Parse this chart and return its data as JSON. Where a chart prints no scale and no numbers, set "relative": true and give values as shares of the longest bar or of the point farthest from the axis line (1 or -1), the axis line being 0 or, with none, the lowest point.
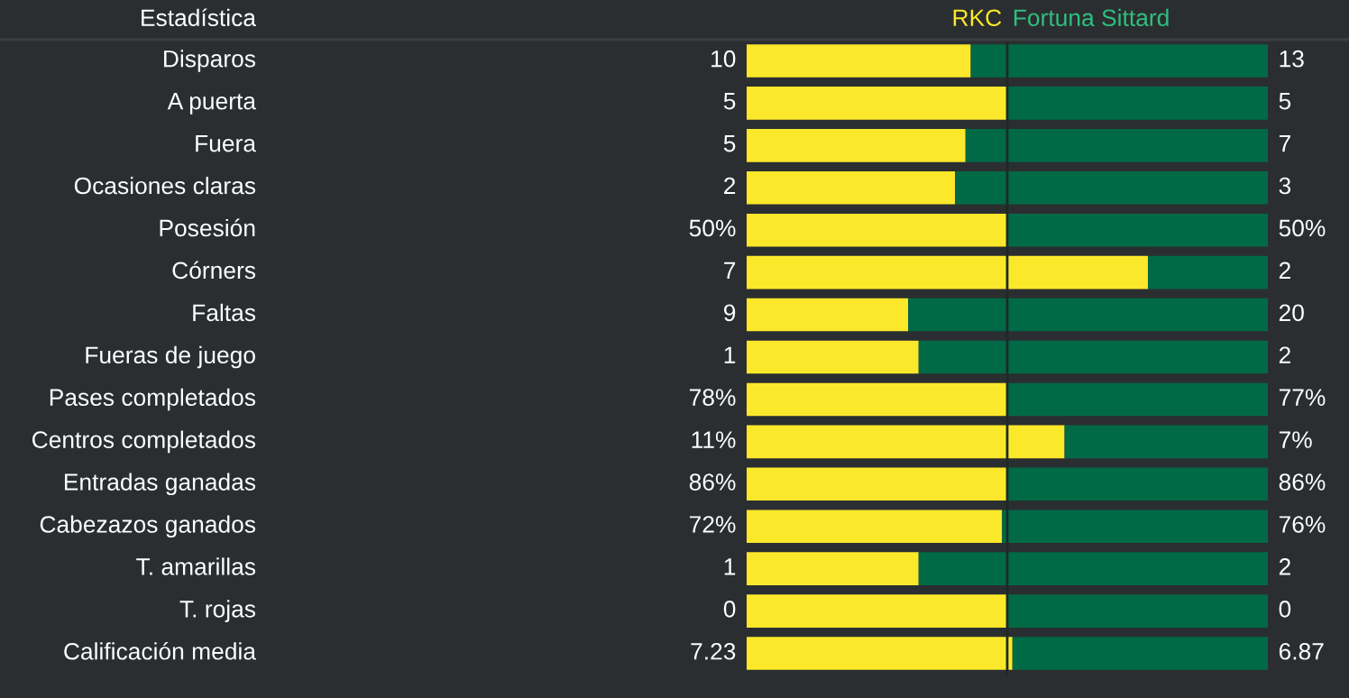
{
  "chart_data": {
    "type": "bar",
    "orientation": "horizontal",
    "stacked": true,
    "relative": true,
    "ylabel": "Estadística",
    "categories": [
      "Disparos",
      "A puerta",
      "Fuera",
      "Ocasiones claras",
      "Posesión",
      "Córners",
      "Faltas",
      "Fueras de juego",
      "Pases completados",
      "Centros completados",
      "Entradas ganadas",
      "Cabezazos ganados",
      "T. amarillas",
      "T. rojas",
      "Calificación media"
    ],
    "series": [
      {
        "name": "RKC",
        "color": "#fce82a",
        "values": [
          0.43,
          0.5,
          0.42,
          0.4,
          0.5,
          0.77,
          0.31,
          0.33,
          0.5,
          0.61,
          0.5,
          0.49,
          0.33,
          0.5,
          0.51
        ]
      },
      {
        "name": "Fortuna Sittard",
        "color": "#006a46",
        "values": [
          0.57,
          0.5,
          0.58,
          0.6,
          0.5,
          0.23,
          0.69,
          0.67,
          0.5,
          0.39,
          0.5,
          0.51,
          0.67,
          0.5,
          0.49
        ]
      }
    ],
    "annotations": [
      "10",
      "13",
      "5",
      "5",
      "5",
      "7",
      "2",
      "3",
      "50%",
      "50%",
      "7",
      "2",
      "9",
      "20",
      "1",
      "2",
      "78%",
      "77%",
      "11%",
      "7%",
      "86%",
      "86%",
      "72%",
      "76%",
      "1",
      "2",
      "0",
      "0",
      "7.23",
      "6.87"
    ],
    "ref_lines": [
      {
        "axis": "x",
        "value": 0.5,
        "color": "#1e2a24"
      }
    ]
  }
}
